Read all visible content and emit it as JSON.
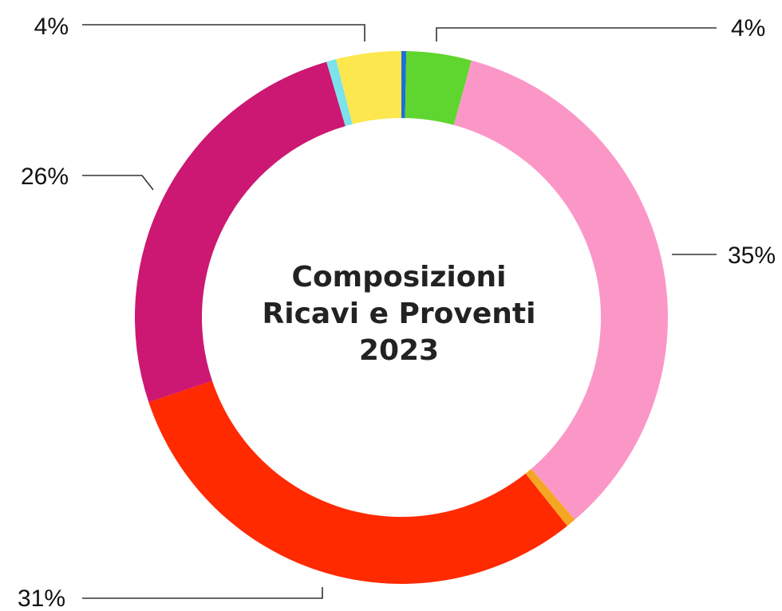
{
  "chart_data": {
    "type": "donut",
    "title_lines": [
      "Composizioni",
      "Ricavi e Proventi",
      "2023"
    ],
    "slices": [
      {
        "value": 0.3,
        "color": "#1f6fd6",
        "label": ""
      },
      {
        "value": 4,
        "color": "#5fd62f",
        "label": "4%"
      },
      {
        "value": 35,
        "color": "#fb97c7",
        "label": "35%"
      },
      {
        "value": 0.6,
        "color": "#f5a623",
        "label": ""
      },
      {
        "value": 31,
        "color": "#ff2a00",
        "label": "31%"
      },
      {
        "value": 26,
        "color": "#cc1773",
        "label": "26%"
      },
      {
        "value": 0.6,
        "color": "#7de3ea",
        "label": ""
      },
      {
        "value": 4,
        "color": "#fde74f",
        "label": "4%"
      }
    ],
    "label_placement": [
      "top-right",
      "right",
      "bottom-left",
      "left",
      "top-left"
    ]
  }
}
